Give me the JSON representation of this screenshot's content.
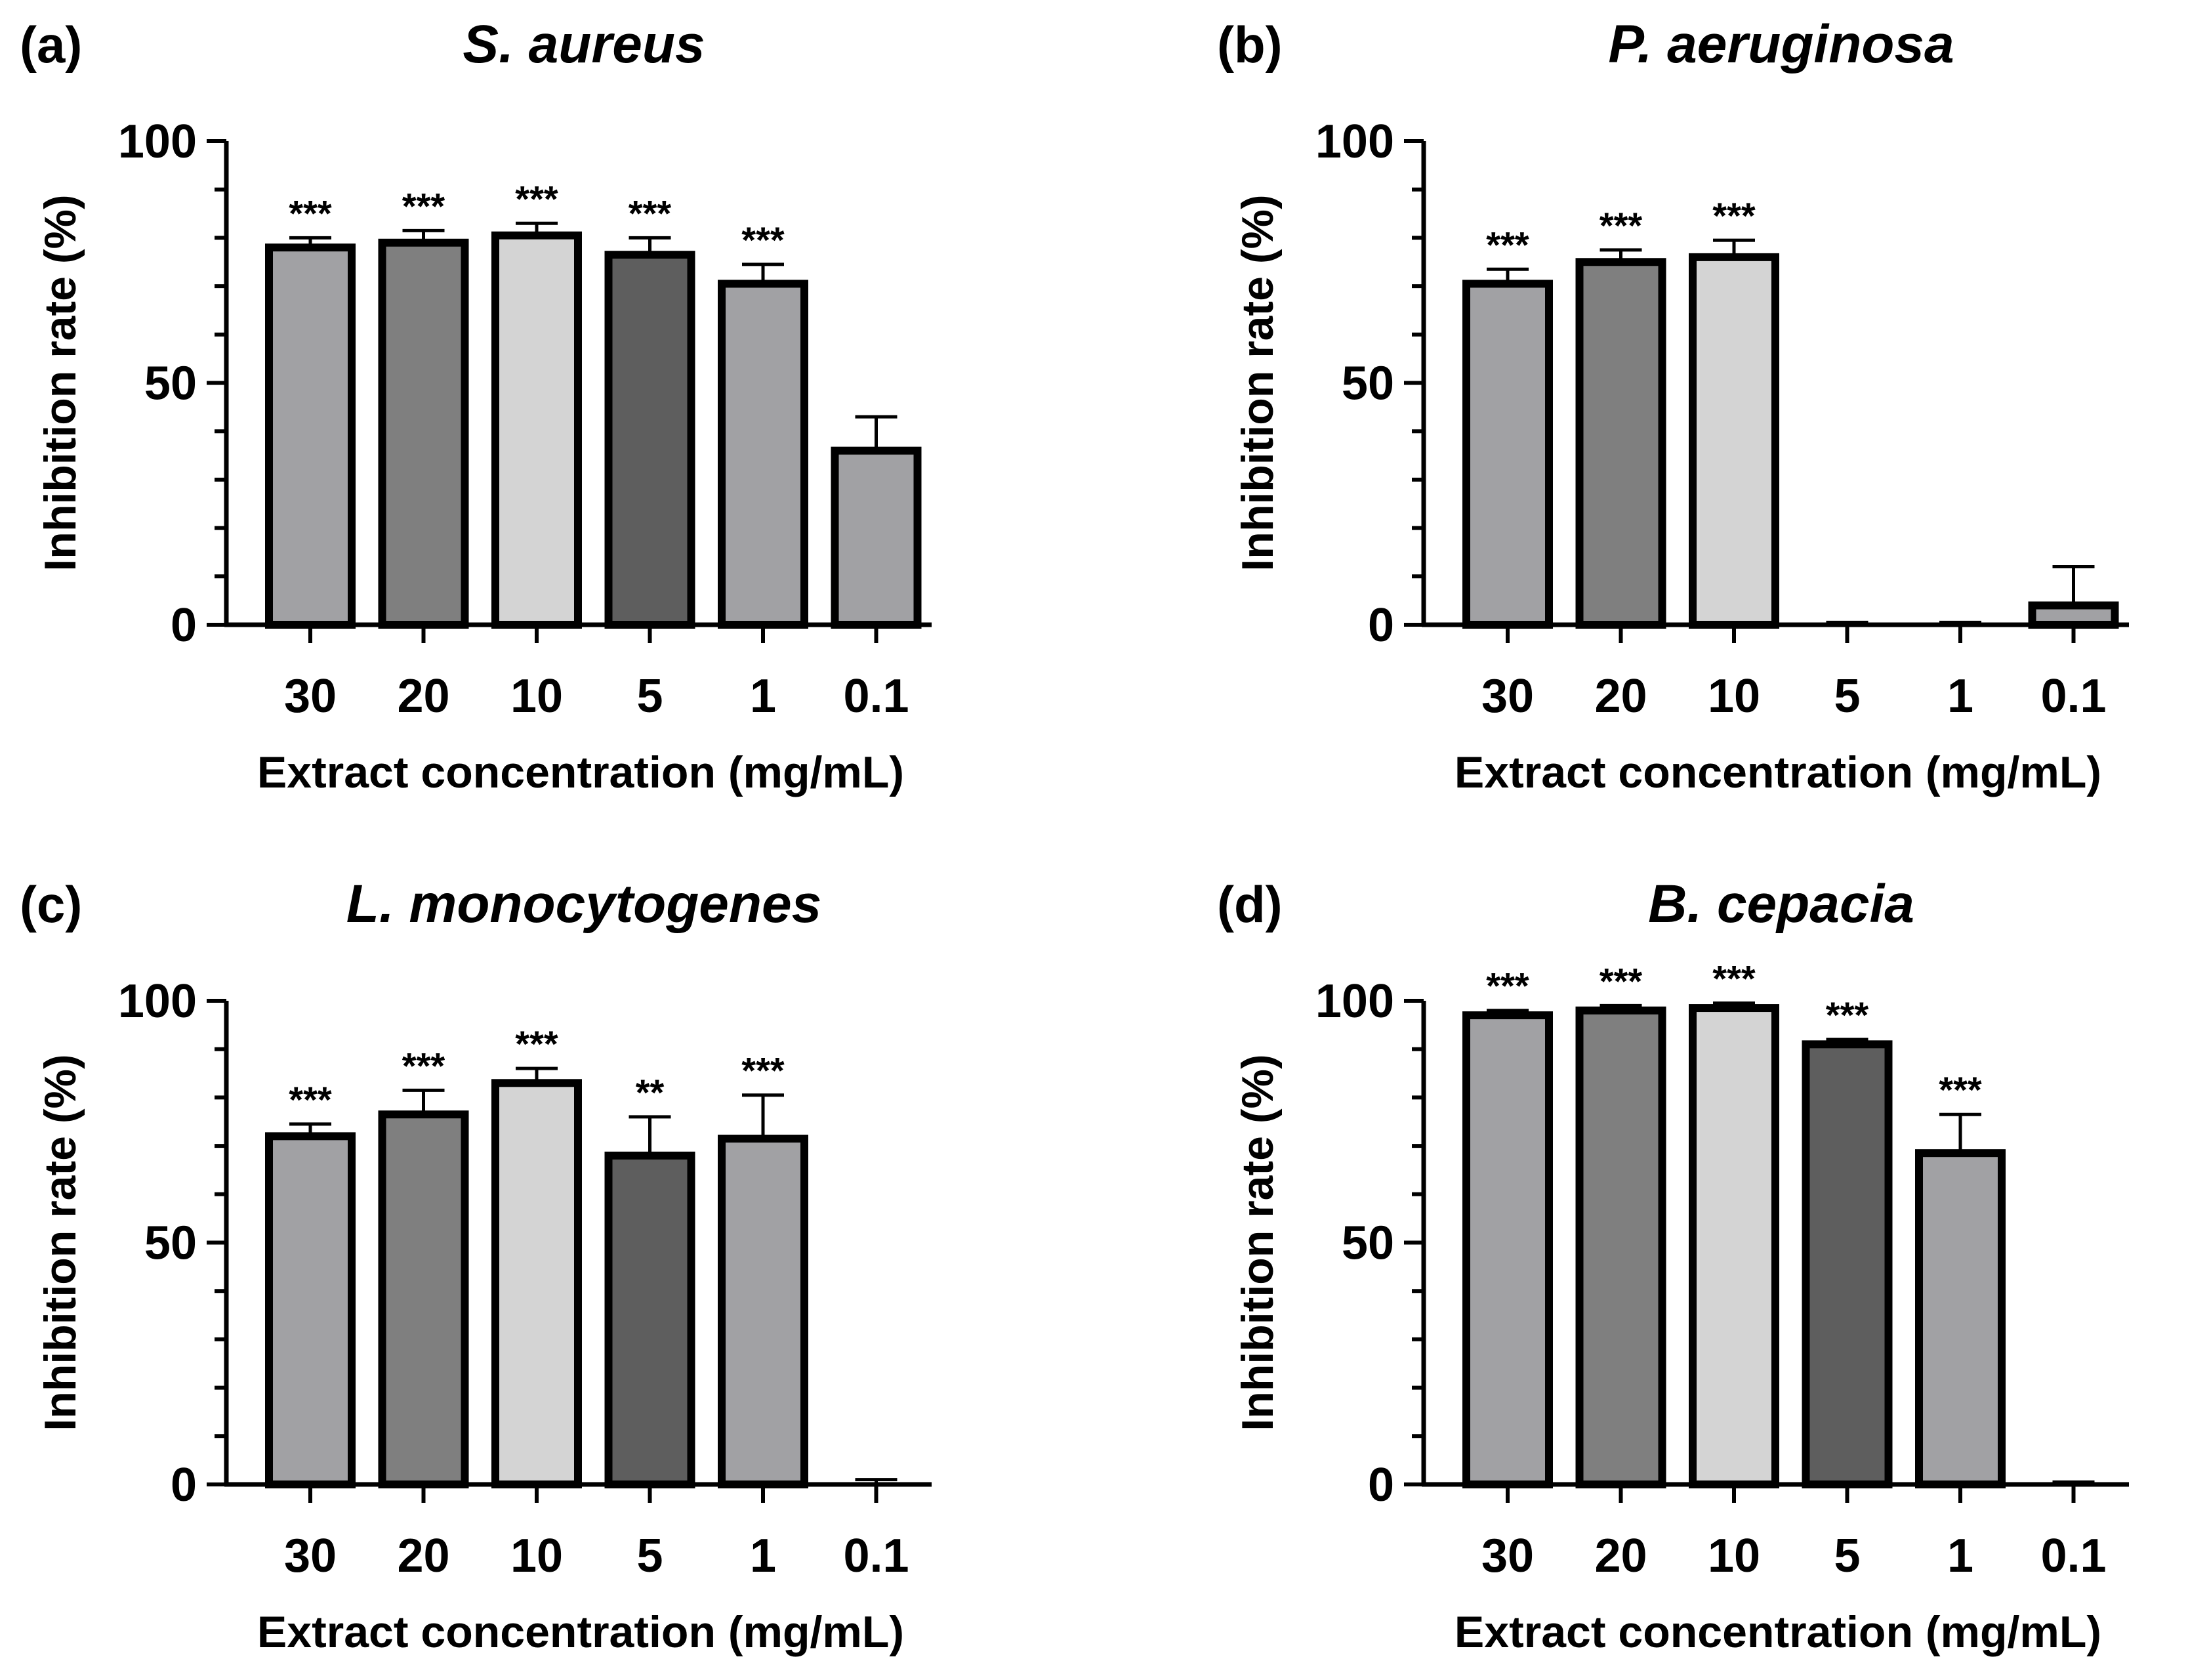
{
  "colors": {
    "axis": "#000000",
    "bar_fills": [
      "#a1a1a4",
      "#7f7f7f",
      "#d4d4d4",
      "#5e5e5e",
      "#a1a1a4",
      "#a1a1a4"
    ]
  },
  "chart_data": [
    {
      "type": "bar",
      "panel": "(a)",
      "title": "S. aureus",
      "xlabel": "Extract concentration (mg/mL)",
      "ylabel": "Inhibition rate (%)",
      "ylim": [
        0,
        100
      ],
      "yticks": [
        0,
        50,
        100
      ],
      "categories": [
        "30",
        "20",
        "10",
        "5",
        "1",
        "0.1"
      ],
      "values": [
        78,
        79,
        80.5,
        76.5,
        70.5,
        36
      ],
      "errors": [
        2,
        2.5,
        2.5,
        3.5,
        4,
        7
      ],
      "significance": [
        "***",
        "***",
        "***",
        "***",
        "***",
        ""
      ]
    },
    {
      "type": "bar",
      "panel": "(b)",
      "title": "P. aeruginosa",
      "xlabel": "Extract concentration (mg/mL)",
      "ylabel": "Inhibition rate (%)",
      "ylim": [
        0,
        100
      ],
      "yticks": [
        0,
        50,
        100
      ],
      "categories": [
        "30",
        "20",
        "10",
        "5",
        "1",
        "0.1"
      ],
      "values": [
        70.5,
        75,
        76,
        0,
        0,
        4
      ],
      "errors": [
        3,
        2.5,
        3.5,
        0.5,
        0.5,
        8
      ],
      "significance": [
        "***",
        "***",
        "***",
        "",
        "",
        ""
      ]
    },
    {
      "type": "bar",
      "panel": "(c)",
      "title": "L. monocytogenes",
      "xlabel": "Extract concentration (mg/mL)",
      "ylabel": "Inhibition rate (%)",
      "ylim": [
        0,
        100
      ],
      "yticks": [
        0,
        50,
        100
      ],
      "categories": [
        "30",
        "20",
        "10",
        "5",
        "1",
        "0.1"
      ],
      "values": [
        72,
        76.5,
        83,
        68,
        71.5,
        0
      ],
      "errors": [
        2.5,
        5,
        3,
        8,
        9,
        1
      ],
      "significance": [
        "***",
        "***",
        "***",
        "**",
        "***",
        ""
      ]
    },
    {
      "type": "bar",
      "panel": "(d)",
      "title": "B. cepacia",
      "xlabel": "Extract concentration (mg/mL)",
      "ylabel": "Inhibition rate (%)",
      "ylim": [
        0,
        100
      ],
      "yticks": [
        0,
        50,
        100
      ],
      "categories": [
        "30",
        "20",
        "10",
        "5",
        "1",
        "0.1"
      ],
      "values": [
        97,
        98,
        98.5,
        91,
        68.5,
        0
      ],
      "errors": [
        1,
        1,
        1,
        1,
        8,
        0.5
      ],
      "significance": [
        "***",
        "***",
        "***",
        "***",
        "***",
        ""
      ]
    }
  ]
}
